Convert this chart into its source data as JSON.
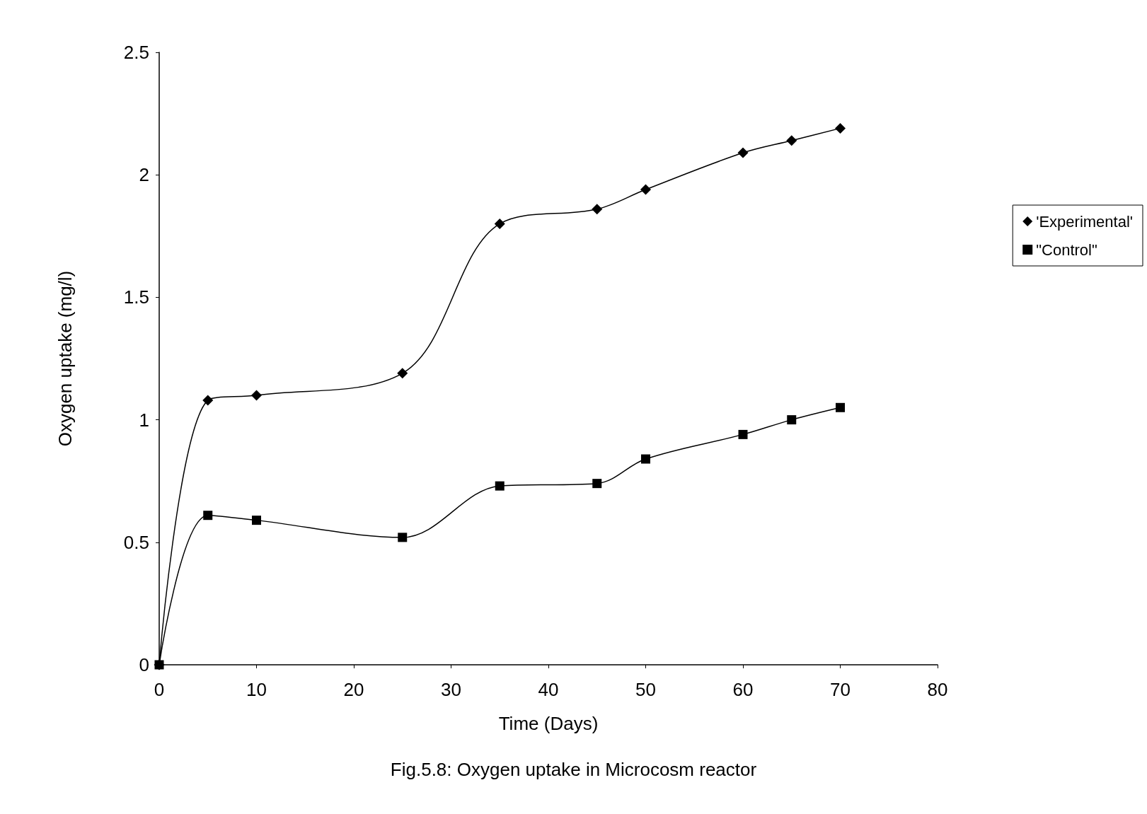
{
  "chart_data": {
    "type": "line",
    "xlabel": "Time (Days)",
    "ylabel": "Oxygen uptake (mg/l)",
    "annotations": [
      "Fig.5.8: Oxygen uptake in Microcosm reactor"
    ],
    "x": [
      0,
      5,
      10,
      25,
      35,
      45,
      50,
      60,
      65,
      70
    ],
    "series": [
      {
        "name": "'Experimental'",
        "color": "#000000",
        "marker": "diamond",
        "values": [
          0,
          1.08,
          1.1,
          1.19,
          1.8,
          1.86,
          1.94,
          2.09,
          2.14,
          2.19
        ]
      },
      {
        "name": "\"Control\"",
        "color": "#000000",
        "marker": "square",
        "values": [
          0,
          0.61,
          0.59,
          0.52,
          0.73,
          0.74,
          0.84,
          0.94,
          1.0,
          1.05
        ]
      }
    ],
    "xlim": [
      0,
      80
    ],
    "xticks": [
      0,
      10,
      20,
      30,
      40,
      50,
      60,
      70,
      80
    ],
    "ylim": [
      0,
      2.5
    ],
    "yticks": [
      0,
      0.5,
      1,
      1.5,
      2,
      2.5
    ],
    "grid": false,
    "legend": "right",
    "line_style": "solid"
  }
}
